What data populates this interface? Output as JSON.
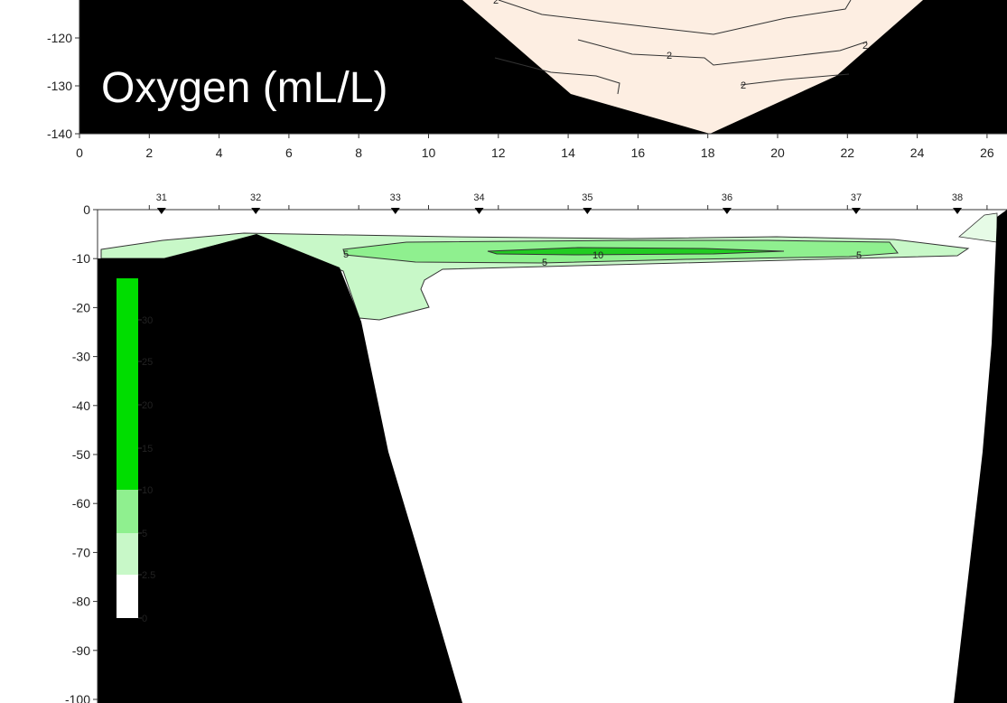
{
  "chart_data": [
    {
      "type": "contour",
      "title": "Oxygen (mL/L)",
      "x_ticks": [
        "0",
        "2",
        "4",
        "6",
        "8",
        "10",
        "12",
        "14",
        "16",
        "18",
        "20",
        "22",
        "24",
        "26"
      ],
      "y_ticks": [
        "-120",
        "-130",
        "-140"
      ],
      "xlim": [
        0,
        26.5
      ],
      "ylim": [
        -140,
        -112.5
      ],
      "contour_labels": [
        {
          "value": "2",
          "x": 11.5,
          "y": -113
        },
        {
          "value": "2",
          "x": 17.0,
          "y": -121.5
        },
        {
          "value": "2",
          "x": 22.4,
          "y": -120.2
        },
        {
          "value": "2",
          "x": 19.3,
          "y": -130
        }
      ],
      "fill_color": "#fdeee2",
      "terrain_color": "#000000"
    },
    {
      "type": "contour",
      "stations": [
        {
          "label": "31",
          "x": 2.35
        },
        {
          "label": "32",
          "x": 5.05
        },
        {
          "label": "33",
          "x": 9.05
        },
        {
          "label": "34",
          "x": 11.45
        },
        {
          "label": "35",
          "x": 14.55
        },
        {
          "label": "36",
          "x": 18.55
        },
        {
          "label": "37",
          "x": 22.25
        },
        {
          "label": "38",
          "x": 25.15
        }
      ],
      "y_ticks": [
        "0",
        "-10",
        "-20",
        "-30",
        "-40",
        "-50",
        "-60",
        "-70",
        "-80",
        "-90",
        "-100"
      ],
      "xlim": [
        0,
        26.5
      ],
      "ylim": [
        -103,
        0
      ],
      "contour_labels": [
        {
          "value": "5",
          "x": 7.9,
          "y": -9
        },
        {
          "value": "5",
          "x": 13.5,
          "y": -11
        },
        {
          "value": "10",
          "x": 15.4,
          "y": -9.5
        },
        {
          "value": "5",
          "x": 22.6,
          "y": -9.5
        }
      ],
      "legend": {
        "levels": [
          {
            "label": "30",
            "color": "#00dd00"
          },
          {
            "label": "25",
            "color": "#00dd00"
          },
          {
            "label": "20",
            "color": "#00dd00"
          },
          {
            "label": "15",
            "color": "#00dd00"
          },
          {
            "label": "10",
            "color": "#33dd33"
          },
          {
            "label": "5",
            "color": "#8ff08f"
          },
          {
            "label": "2.5",
            "color": "#c8f8c8"
          },
          {
            "label": "0",
            "color": "#ffffff"
          }
        ]
      },
      "terrain_color": "#000000"
    }
  ]
}
